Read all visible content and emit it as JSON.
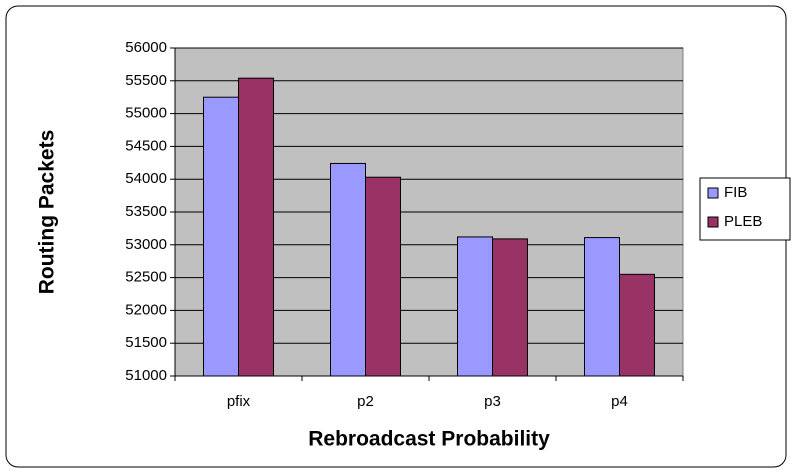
{
  "chart_data": {
    "type": "bar",
    "x_label": "Rebroadcast Probability",
    "y_label": "Routing Packets",
    "categories": [
      "pfix",
      "p2",
      "p3",
      "p4"
    ],
    "series": [
      {
        "name": "FIB",
        "color": "#9999ff",
        "values": [
          55250,
          54240,
          53120,
          53110
        ]
      },
      {
        "name": "PLEB",
        "color": "#993366",
        "values": [
          55540,
          54030,
          53090,
          52550
        ]
      }
    ],
    "ylim": [
      51000,
      56000
    ],
    "yticks": [
      51000,
      51500,
      52000,
      52500,
      53000,
      53500,
      54000,
      54500,
      55000,
      55500,
      56000
    ],
    "grid": true,
    "legend": "right"
  }
}
